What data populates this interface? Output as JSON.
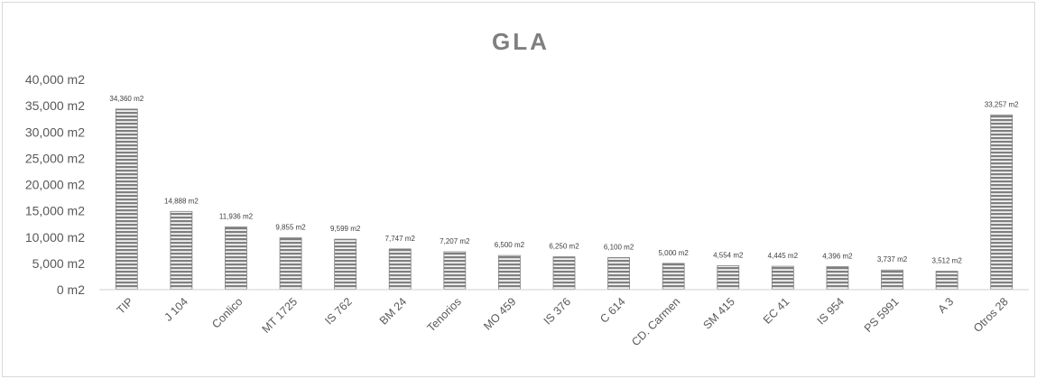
{
  "chart_data": {
    "type": "bar",
    "title": "GLA",
    "xlabel": "",
    "ylabel": "",
    "ylim": [
      0,
      40000
    ],
    "y_tick_labels": [
      "0 m2",
      "5,000 m2",
      "10,000 m2",
      "15,000 m2",
      "20,000 m2",
      "25,000 m2",
      "30,000 m2",
      "35,000 m2",
      "40,000 m2"
    ],
    "grid": false,
    "legend": "none",
    "bar_color": "#7f7f7f",
    "bar_fill": "horizontal-stripes",
    "categories": [
      "TIP",
      "J 104",
      "Conlico",
      "MT 1725",
      "IS 762",
      "BM 24",
      "Tenorios",
      "MO 459",
      "IS 376",
      "C 614",
      "CD. Carmen",
      "SM 415",
      "EC 41",
      "IS 954",
      "PS 5991",
      "A 3",
      "Otros 28"
    ],
    "values": [
      34360,
      14888,
      11936,
      9855,
      9599,
      7747,
      7207,
      6500,
      6250,
      6100,
      5000,
      4554,
      4445,
      4396,
      3737,
      3512,
      33257
    ],
    "data_labels": [
      "34,360 m2",
      "14,888 m2",
      "11,936 m2",
      "9,855 m2",
      "9,599 m2",
      "7,747 m2",
      "7,207 m2",
      "6,500 m2",
      "6,250 m2",
      "6,100 m2",
      "5,000 m2",
      "4,554 m2",
      "4,445 m2",
      "4,396 m2",
      "3,737 m2",
      "3,512 m2",
      "33,257 m2"
    ]
  }
}
